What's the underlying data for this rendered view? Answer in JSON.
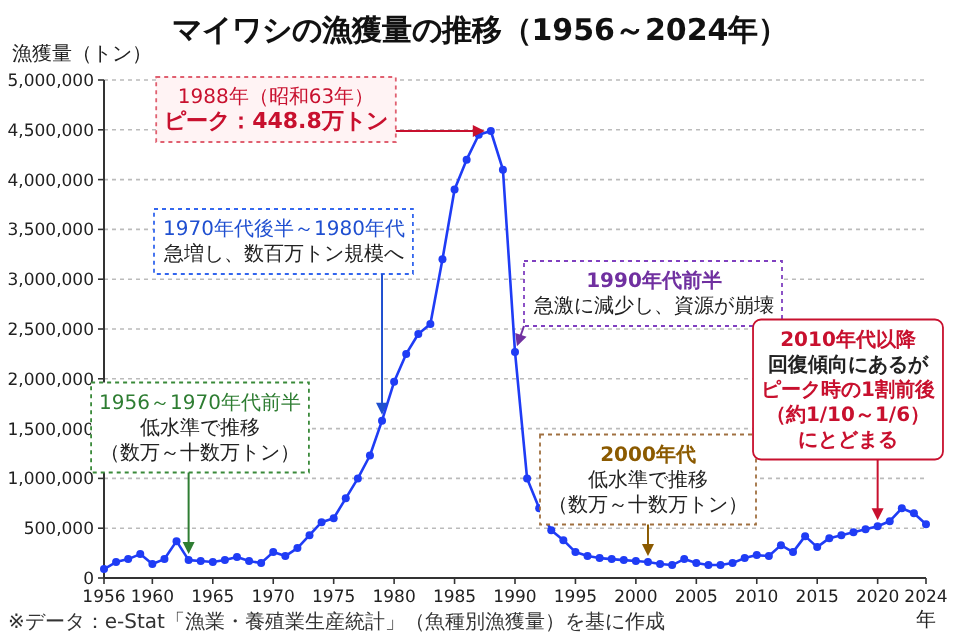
{
  "chart_data": {
    "type": "line",
    "title": "マイワシの漁獲量の推移（1956～2024年）",
    "ylabel": "漁獲量（トン）",
    "xlabel": "年",
    "x": [
      1956,
      1957,
      1958,
      1959,
      1960,
      1961,
      1962,
      1963,
      1964,
      1965,
      1966,
      1967,
      1968,
      1969,
      1970,
      1971,
      1972,
      1973,
      1974,
      1975,
      1976,
      1977,
      1978,
      1979,
      1980,
      1981,
      1982,
      1983,
      1984,
      1985,
      1986,
      1987,
      1988,
      1989,
      1990,
      1991,
      1992,
      1993,
      1994,
      1995,
      1996,
      1997,
      1998,
      1999,
      2000,
      2001,
      2002,
      2003,
      2004,
      2005,
      2006,
      2007,
      2008,
      2009,
      2010,
      2011,
      2012,
      2013,
      2014,
      2015,
      2016,
      2017,
      2018,
      2019,
      2020,
      2021,
      2022,
      2023,
      2024
    ],
    "series": [
      {
        "color": "#1f3cf5",
        "values": [
          90000,
          160000,
          190000,
          240000,
          140000,
          190000,
          370000,
          180000,
          170000,
          160000,
          180000,
          210000,
          170000,
          150000,
          260000,
          220000,
          300000,
          430000,
          560000,
          600000,
          800000,
          1000000,
          1230000,
          1580000,
          1970000,
          2250000,
          2450000,
          2550000,
          3200000,
          3900000,
          4200000,
          4450000,
          4488000,
          4100000,
          2270000,
          1000000,
          700000,
          480000,
          380000,
          260000,
          220000,
          200000,
          190000,
          180000,
          170000,
          160000,
          140000,
          130000,
          190000,
          150000,
          130000,
          130000,
          150000,
          200000,
          230000,
          220000,
          330000,
          260000,
          420000,
          310000,
          400000,
          430000,
          460000,
          490000,
          520000,
          570000,
          700000,
          650000,
          540000
        ]
      }
    ],
    "xlim": [
      1956,
      2024
    ],
    "xticks": [
      1956,
      1960,
      1965,
      1970,
      1975,
      1980,
      1985,
      1990,
      1995,
      2000,
      2005,
      2010,
      2015,
      2020,
      2024
    ],
    "ylim": [
      0,
      5000000
    ],
    "yticks": [
      0,
      {
        "value": 500000,
        "label": "500,000"
      },
      {
        "value": 1000000,
        "label": "1,000,000"
      },
      {
        "value": 1500000,
        "label": "1,500,000"
      },
      {
        "value": 2000000,
        "label": "2,000,000"
      },
      {
        "value": 2500000,
        "label": "2,500,000"
      },
      {
        "value": 3000000,
        "label": "3,000,000"
      },
      {
        "value": 3500000,
        "label": "3,500,000"
      },
      {
        "value": 4000000,
        "label": "4,000,000"
      },
      {
        "value": 4500000,
        "label": "4,500,000"
      },
      {
        "value": 5000000,
        "label": "5,000,000"
      }
    ],
    "grid": "y",
    "marker": "circle",
    "line_style": "solid",
    "annotations": [
      "1988年（昭和63年）",
      {
        "text": "ピーク：448.8万トン",
        "x": 1988,
        "y": 4488000
      },
      "1970年代後半～1980年代",
      {
        "text": "急増し、数百万トン規模へ",
        "x": 1979,
        "y": 1580000
      },
      "1990年代前半",
      {
        "text": "急激に減少し、資源が崩壊",
        "x": 1990,
        "y": 2270000
      },
      "1956～1970年代前半",
      "低水準で推移",
      {
        "text": "（数万～十数万トン）",
        "x": 1963,
        "y": 180000
      },
      "2000年代",
      "低水準で推移",
      {
        "text": "（数万～十数万トン）",
        "x": 2001,
        "y": 160000
      },
      "2010年代以降",
      "回復傾向にあるが",
      "ピーク時の1割前後",
      "（約1/10～1/6）",
      {
        "text": "にとどまる",
        "x": 2020,
        "y": 520000
      },
      "※データ：e-Stat「漁業・養殖業生産統計」（魚種別漁獲量）を基に作成"
    ]
  }
}
